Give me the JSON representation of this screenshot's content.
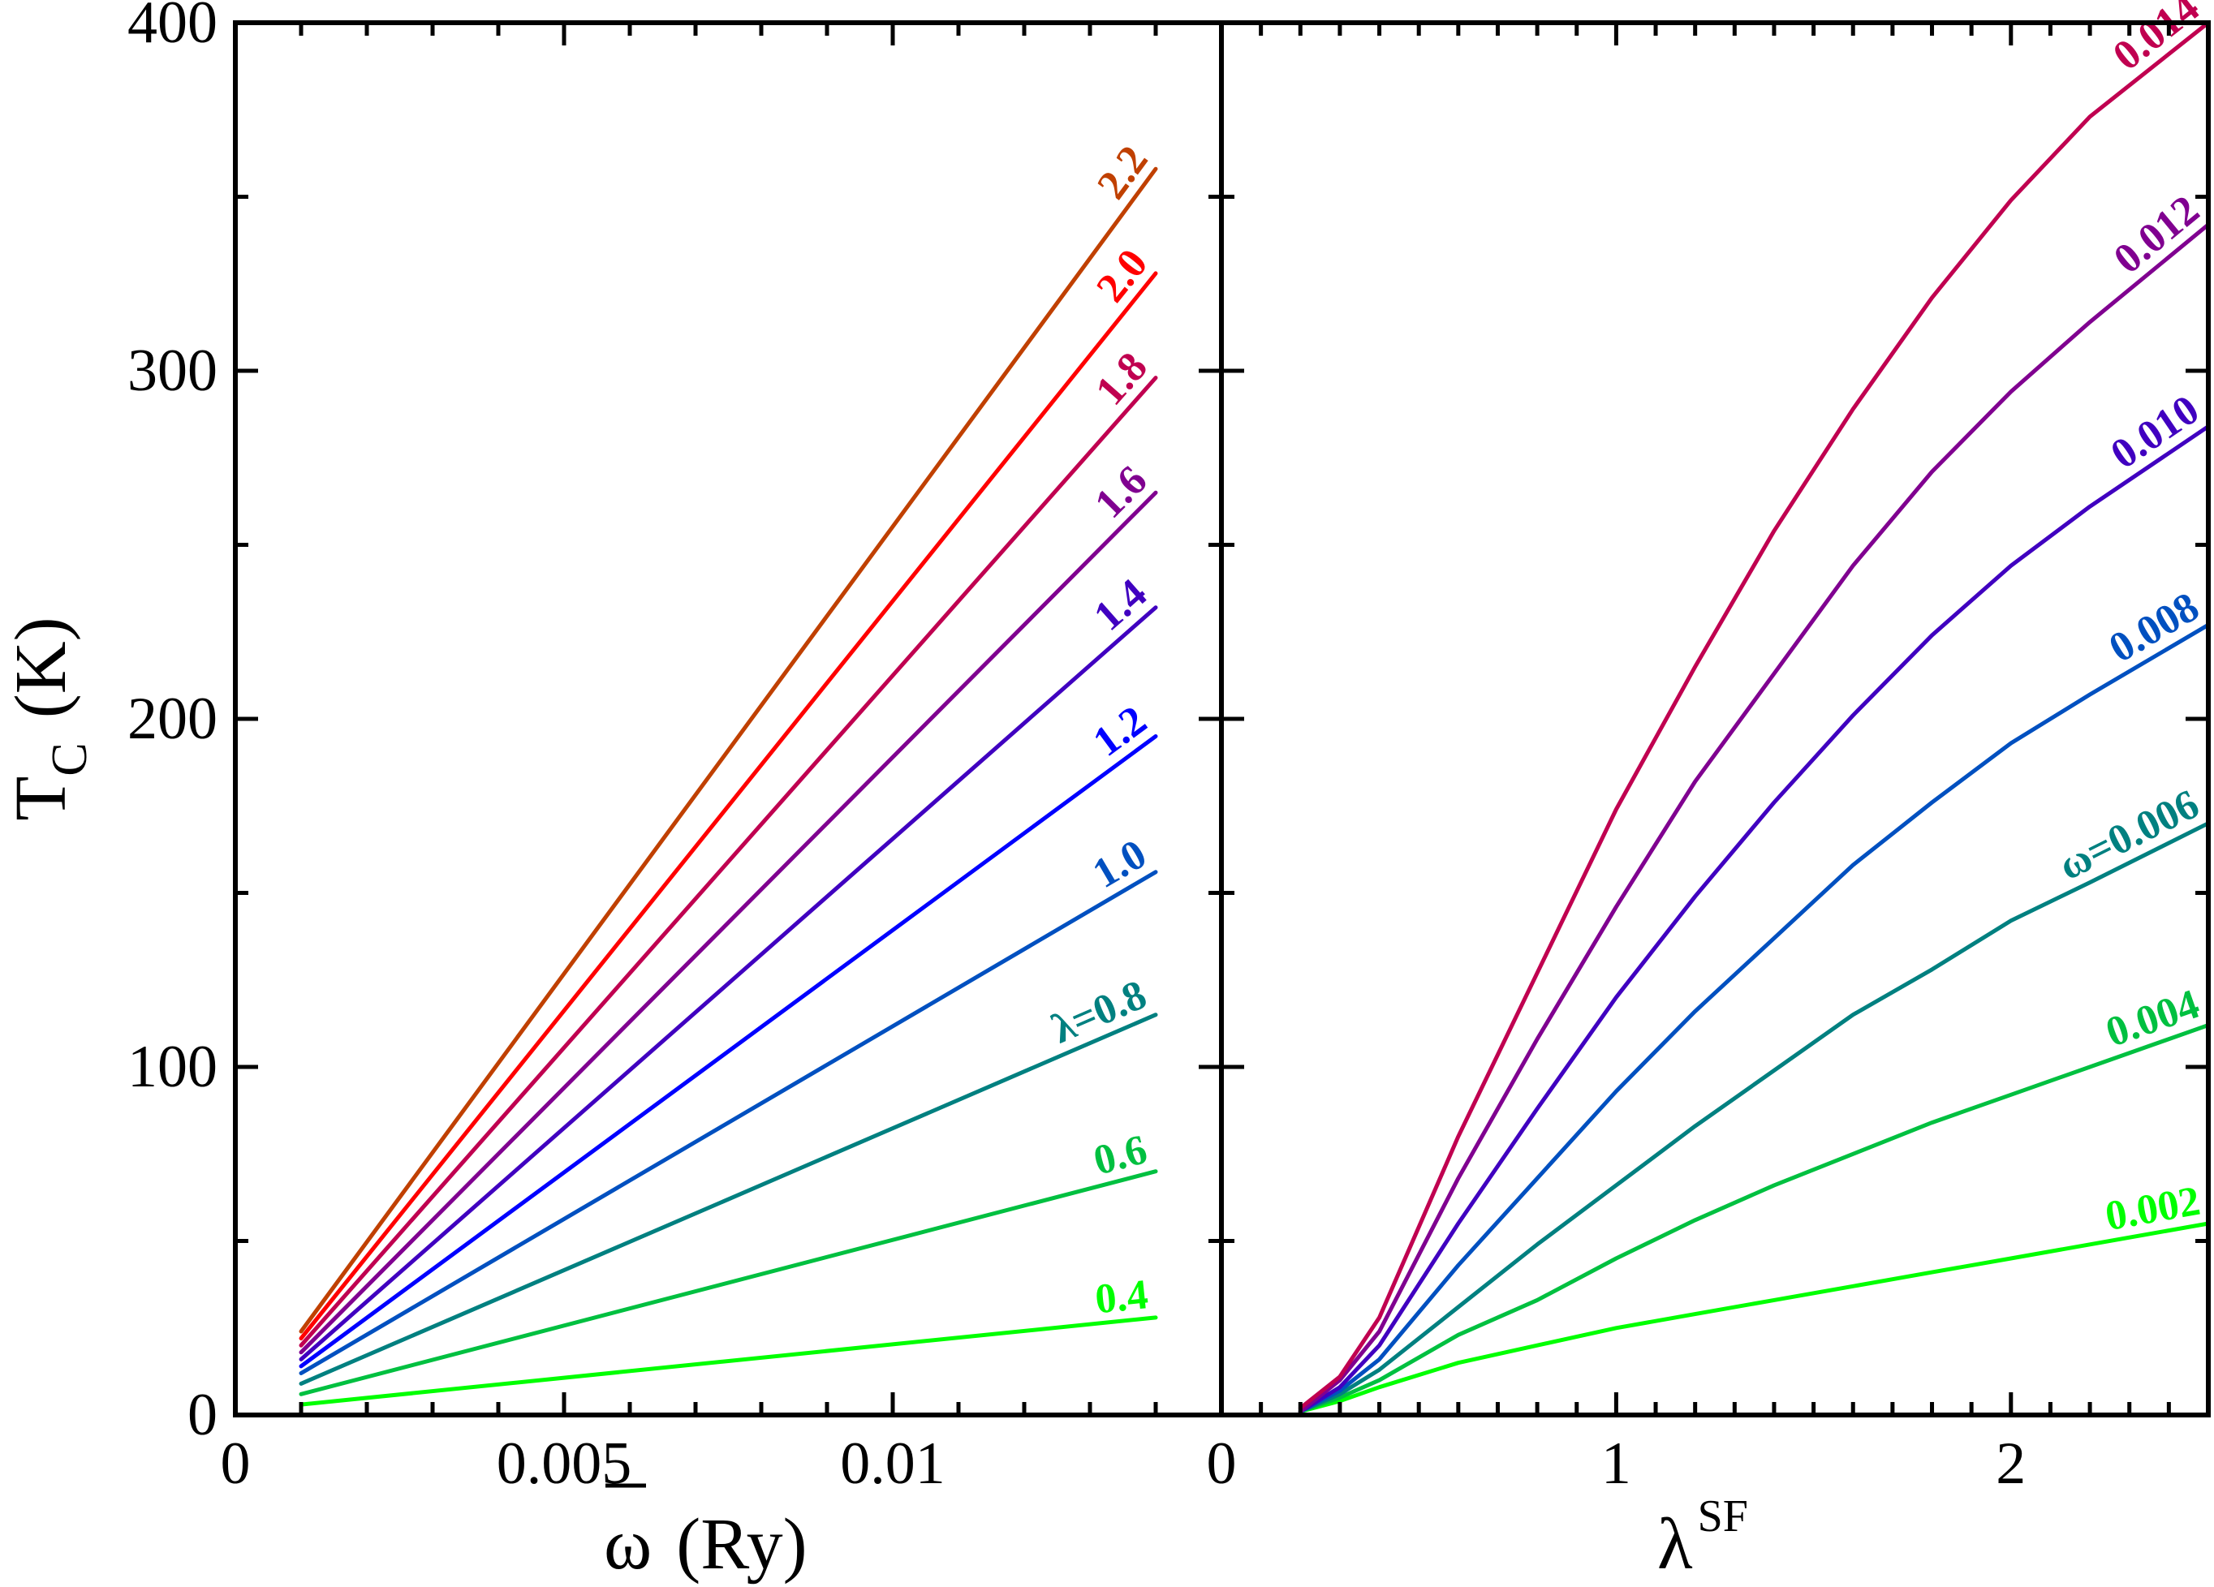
{
  "chart_data": [
    {
      "type": "line",
      "panel": "left",
      "title": "",
      "xlabel": "ω̄ (Ry)",
      "xlabel_main": "ω",
      "xlabel_unit": "(Ry)",
      "ylabel": "T_C (K)",
      "ylabel_main": "T",
      "ylabel_sub": "C",
      "ylabel_unit": "(K)",
      "xlim": [
        0,
        0.015
      ],
      "ylim": [
        0,
        400
      ],
      "x_tick_labels": [
        "0",
        "0.005",
        "0.01"
      ],
      "y_tick_labels": [
        "0",
        "100",
        "200",
        "300",
        "400"
      ],
      "grid": false,
      "legend": "inline labels at line ends",
      "x": [
        0.001,
        0.014
      ],
      "series": [
        {
          "name": "λ=0.4",
          "label": "0.4",
          "color": "#00ff00",
          "values": [
            3,
            28
          ]
        },
        {
          "name": "λ=0.6",
          "label": "0.6",
          "color": "#00c040",
          "values": [
            6,
            70
          ]
        },
        {
          "name": "λ=0.8",
          "label": "λ=0.8",
          "color": "#008080",
          "values": [
            9,
            115
          ]
        },
        {
          "name": "λ=1.0",
          "label": "1.0",
          "color": "#0050c0",
          "values": [
            12,
            156
          ]
        },
        {
          "name": "λ=1.2",
          "label": "1.2",
          "color": "#0000ff",
          "values": [
            14,
            195
          ]
        },
        {
          "name": "λ=1.4",
          "label": "1.4",
          "color": "#4000c0",
          "values": [
            16,
            232
          ]
        },
        {
          "name": "λ=1.6",
          "label": "1.6",
          "color": "#800090",
          "values": [
            18,
            265
          ]
        },
        {
          "name": "λ=1.8",
          "label": "1.8",
          "color": "#c00050",
          "values": [
            20,
            298
          ]
        },
        {
          "name": "λ=2.0",
          "label": "2.0",
          "color": "#ff0000",
          "values": [
            22,
            328
          ]
        },
        {
          "name": "λ=2.2",
          "label": "2.2",
          "color": "#c04000",
          "values": [
            24,
            358
          ]
        }
      ]
    },
    {
      "type": "line",
      "panel": "right",
      "title": "",
      "xlabel": "λ^SF",
      "xlabel_main": "λ",
      "xlabel_sup": "SF",
      "xlim": [
        0,
        2.5
      ],
      "ylim": [
        0,
        400
      ],
      "x_tick_labels": [
        "0",
        "1",
        "2"
      ],
      "grid": false,
      "legend": "inline labels at line ends",
      "x": [
        0.2,
        0.3,
        0.4,
        0.6,
        0.8,
        1.0,
        1.2,
        1.4,
        1.6,
        1.8,
        2.0,
        2.2,
        2.5
      ],
      "series": [
        {
          "name": "ω̄=0.002",
          "label": "0.002",
          "color": "#00ff00",
          "values": [
            1,
            4,
            8,
            15,
            20,
            25,
            29,
            33,
            37,
            41,
            45,
            49,
            55
          ]
        },
        {
          "name": "ω̄=0.004",
          "label": "0.004",
          "color": "#00c040",
          "values": [
            1,
            5,
            10,
            23,
            33,
            45,
            56,
            66,
            75,
            84,
            92,
            100,
            112
          ]
        },
        {
          "name": "ω̄=0.006",
          "label": "ω=0.006",
          "color": "#008080",
          "values": [
            1,
            6,
            13,
            31,
            49,
            66,
            83,
            99,
            115,
            128,
            142,
            153,
            170
          ]
        },
        {
          "name": "ω̄=0.008",
          "label": "0.008",
          "color": "#0050c0",
          "values": [
            1,
            7,
            16,
            43,
            68,
            93,
            116,
            137,
            158,
            176,
            193,
            207,
            227
          ]
        },
        {
          "name": "ω̄=0.010",
          "label": "0.010",
          "color": "#4000c0",
          "values": [
            1,
            8,
            20,
            55,
            88,
            120,
            149,
            176,
            201,
            224,
            244,
            261,
            284
          ]
        },
        {
          "name": "ω̄=0.012",
          "label": "0.012",
          "color": "#800090",
          "values": [
            1,
            10,
            24,
            68,
            108,
            146,
            182,
            213,
            244,
            271,
            294,
            314,
            342
          ]
        },
        {
          "name": "ω̄=0.014",
          "label": "0.014",
          "color": "#c00050",
          "values": [
            2,
            11,
            28,
            80,
            127,
            174,
            215,
            254,
            289,
            321,
            349,
            373,
            400
          ]
        }
      ]
    }
  ]
}
